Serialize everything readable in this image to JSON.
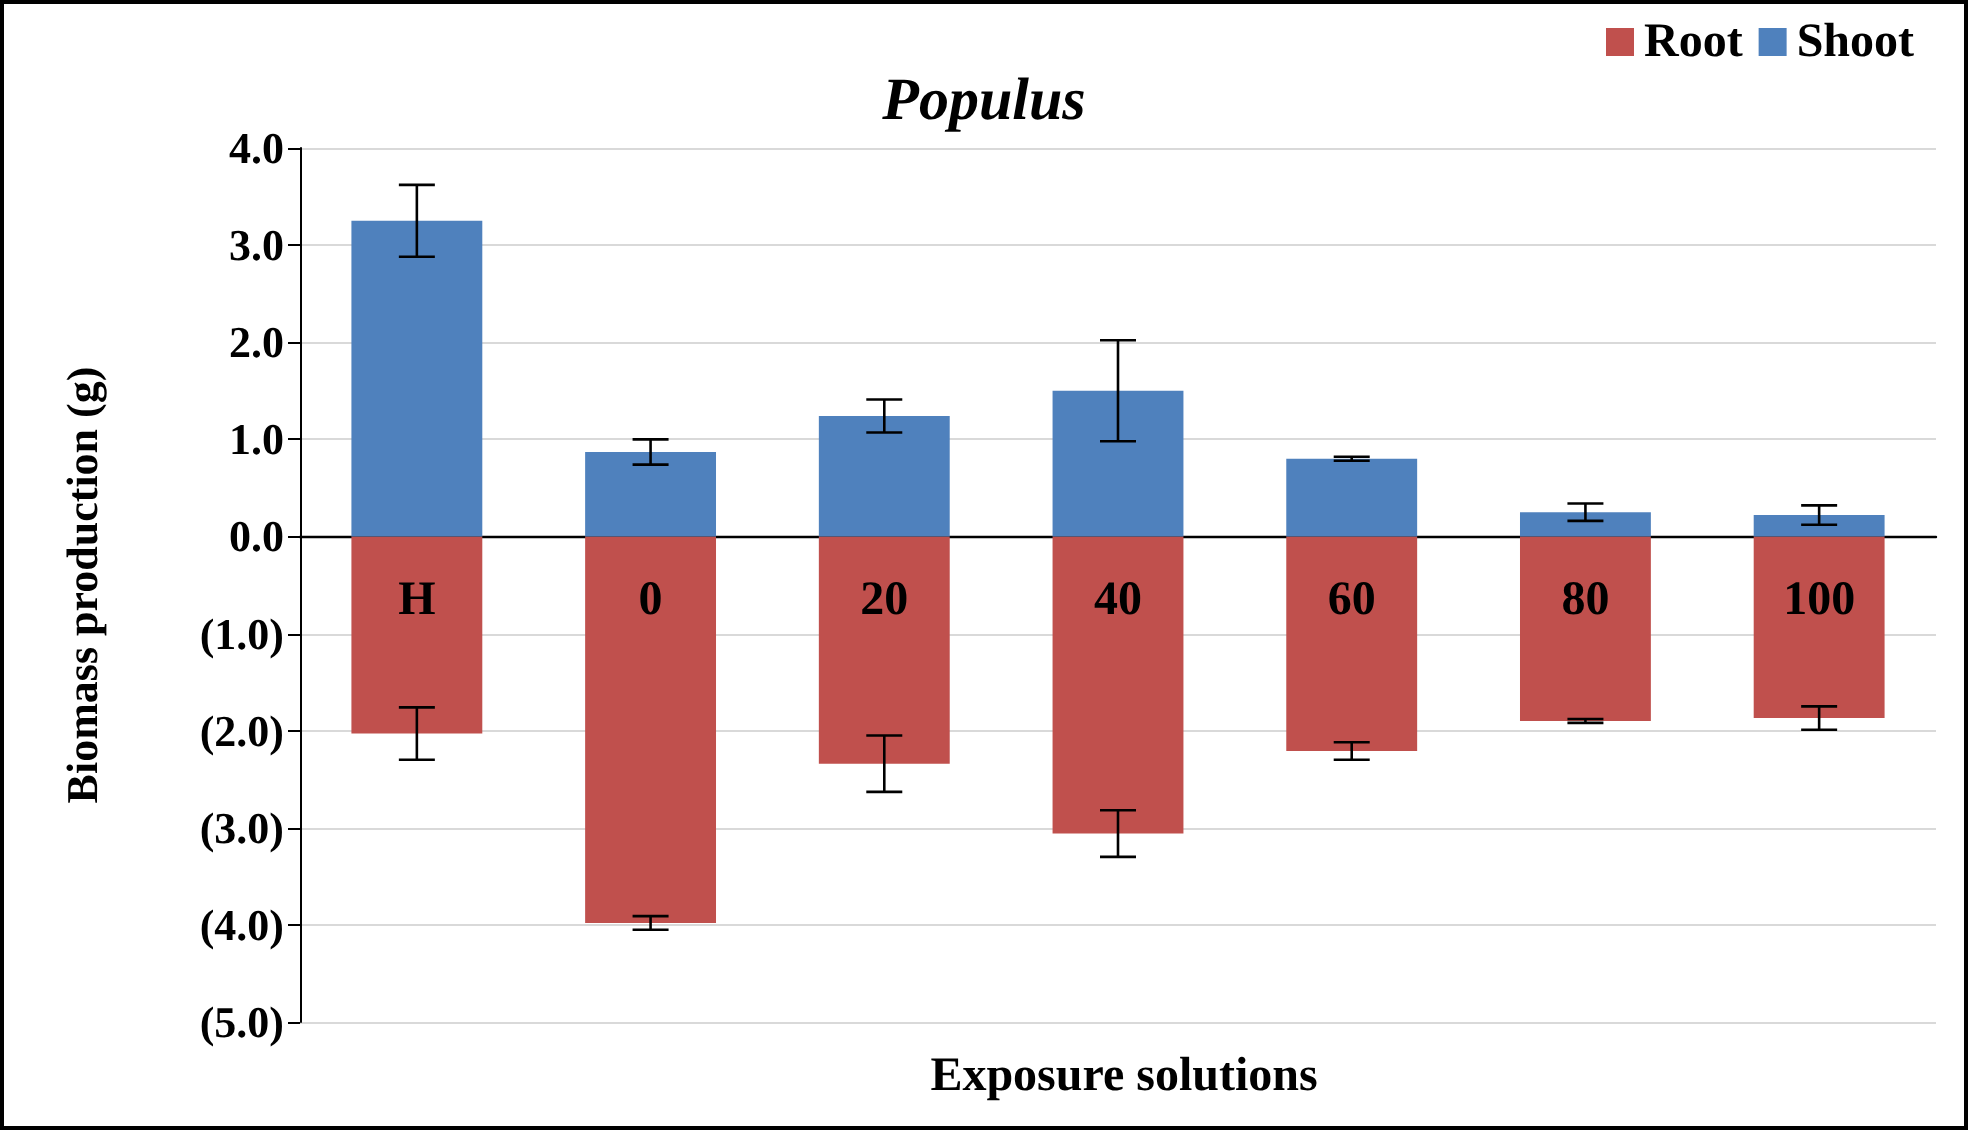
{
  "chart_data": {
    "type": "bar",
    "title": "Populus",
    "xlabel": "Exposure solutions",
    "ylabel": "Biomass production (g)",
    "categories": [
      "H",
      "0",
      "20",
      "40",
      "60",
      "80",
      "100"
    ],
    "stacked": true,
    "series": [
      {
        "name": "Root",
        "color": "#c0504d",
        "values": [
          -2.03,
          -3.98,
          -2.34,
          -3.06,
          -2.21,
          -1.9,
          -1.87
        ],
        "errors": [
          0.27,
          0.07,
          0.29,
          0.24,
          0.09,
          0.02,
          0.12
        ]
      },
      {
        "name": "Shoot",
        "color": "#4f81bd",
        "values": [
          3.25,
          0.87,
          1.24,
          1.5,
          0.8,
          0.25,
          0.22
        ],
        "errors": [
          0.37,
          0.13,
          0.17,
          0.52,
          0.02,
          0.09,
          0.1
        ]
      }
    ],
    "ylim": [
      -5,
      4
    ],
    "yticks": [
      {
        "value": -5,
        "label": "(5.0)"
      },
      {
        "value": -4,
        "label": "(4.0)"
      },
      {
        "value": -3,
        "label": "(3.0)"
      },
      {
        "value": -2,
        "label": "(2.0)"
      },
      {
        "value": -1,
        "label": "(1.0)"
      },
      {
        "value": 0,
        "label": "0.0"
      },
      {
        "value": 1,
        "label": "1.0"
      },
      {
        "value": 2,
        "label": "2.0"
      },
      {
        "value": 3,
        "label": "3.0"
      },
      {
        "value": 4,
        "label": "4.0"
      }
    ],
    "grid": "y",
    "legend": "top right"
  }
}
